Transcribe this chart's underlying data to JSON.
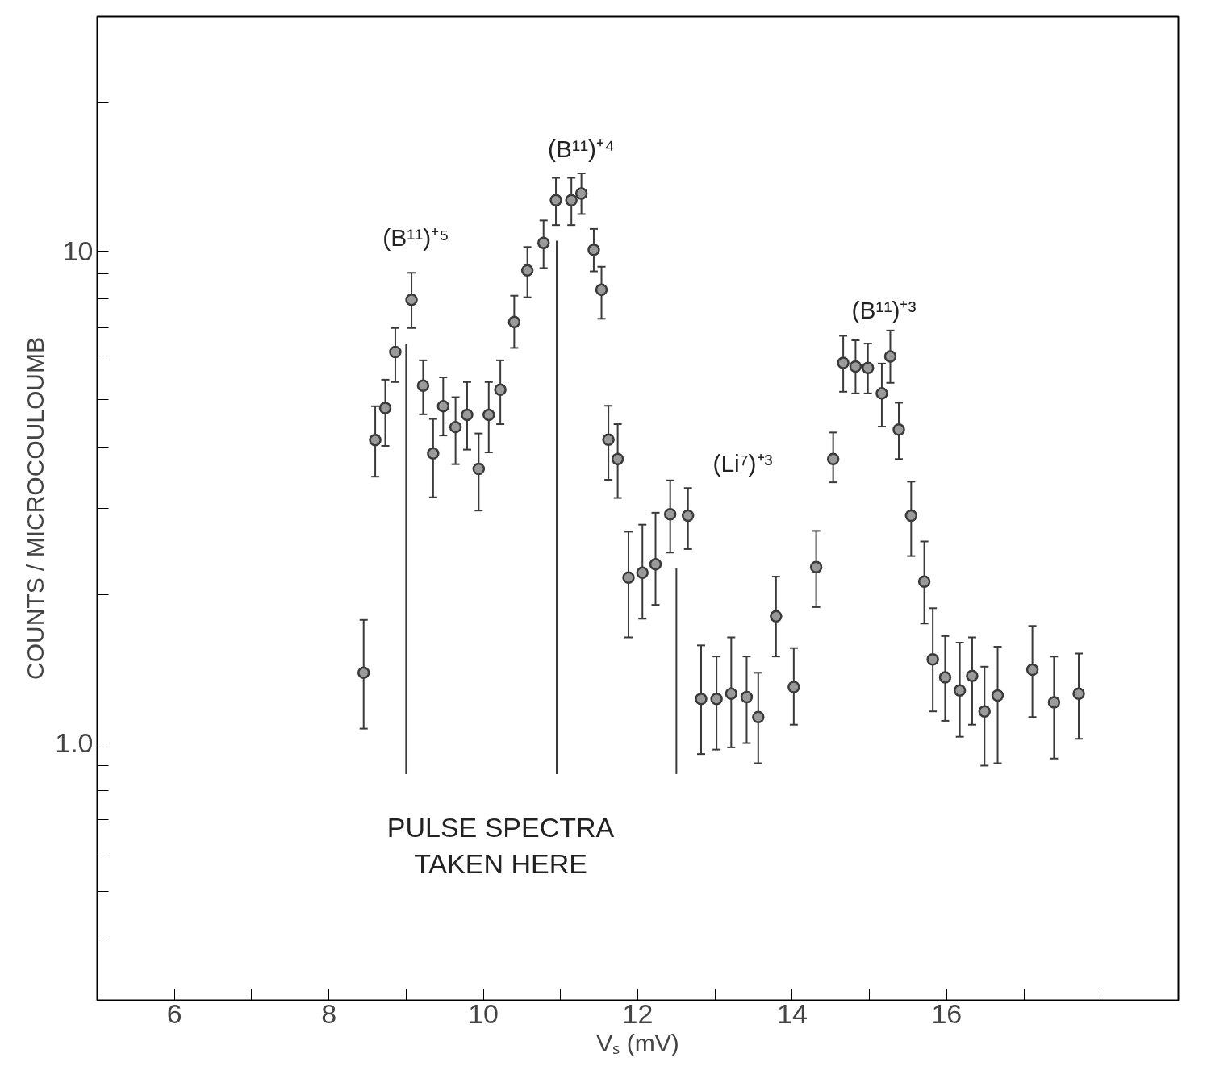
{
  "chart_data": {
    "type": "scatter",
    "xlabel": "Vₛ (mV)",
    "ylabel": "COUNTS / MICROCOULOUMB",
    "log": "y",
    "grid": false,
    "marker": "circle",
    "xlim": [
      5,
      19
    ],
    "ylim": [
      0.3,
      30
    ],
    "xticks": [
      6,
      {
        "value": 7,
        "label": null
      },
      8,
      {
        "value": 9,
        "label": null
      },
      10,
      {
        "value": 11,
        "label": null
      },
      12,
      {
        "value": 13,
        "label": null
      },
      14,
      {
        "value": 15,
        "label": null
      },
      16,
      {
        "value": 17,
        "label": null
      },
      {
        "value": 18,
        "label": null
      }
    ],
    "yticks": [
      {
        "value": 0.4,
        "label": null
      },
      {
        "value": 0.5,
        "label": null
      },
      {
        "value": 0.6,
        "label": null
      },
      {
        "value": 0.7,
        "label": null
      },
      {
        "value": 0.8,
        "label": null
      },
      {
        "value": 0.9,
        "label": null
      },
      {
        "value": 1,
        "label": "1.0"
      },
      {
        "value": 2,
        "label": null
      },
      {
        "value": 3,
        "label": null
      },
      {
        "value": 4,
        "label": null
      },
      {
        "value": 5,
        "label": null
      },
      {
        "value": 6,
        "label": null
      },
      {
        "value": 7,
        "label": null
      },
      {
        "value": 8,
        "label": null
      },
      {
        "value": 9,
        "label": null
      },
      {
        "value": 10,
        "label": "10"
      },
      {
        "value": 20,
        "label": null
      }
    ],
    "series": [
      {
        "color": "#3a3a3a",
        "x": [
          8.45,
          8.6,
          8.73,
          8.86,
          9.07,
          9.22,
          9.35,
          9.48,
          9.64,
          9.79,
          9.94,
          10.07,
          10.22,
          10.4,
          10.57,
          10.78,
          10.94,
          11.14,
          11.27,
          11.43,
          11.53,
          11.62,
          11.74,
          11.88,
          12.06,
          12.23,
          12.42,
          12.65,
          12.82,
          13.02,
          13.21,
          13.41,
          13.56,
          13.79,
          14.02,
          14.31,
          14.53,
          14.66,
          14.82,
          14.98,
          15.16,
          15.27,
          15.38,
          15.54,
          15.71,
          15.82,
          15.98,
          16.17,
          16.33,
          16.49,
          16.66,
          17.11,
          17.39,
          17.71
        ],
        "values": [
          1.39,
          4.13,
          4.8,
          6.24,
          7.97,
          5.33,
          3.88,
          4.84,
          4.39,
          4.65,
          3.61,
          4.65,
          5.23,
          7.18,
          9.14,
          10.4,
          12.7,
          12.7,
          13.1,
          10.07,
          8.35,
          4.14,
          3.78,
          2.17,
          2.22,
          2.31,
          2.92,
          2.9,
          1.23,
          1.23,
          1.26,
          1.24,
          1.13,
          1.81,
          1.3,
          2.28,
          3.78,
          5.93,
          5.83,
          5.79,
          5.14,
          6.11,
          4.34,
          2.9,
          2.13,
          1.48,
          1.36,
          1.28,
          1.37,
          1.16,
          1.25,
          1.41,
          1.21,
          1.26
        ],
        "errors": [
          [
            1.07,
            1.78
          ],
          [
            3.48,
            4.84
          ],
          [
            4.02,
            5.48
          ],
          [
            5.42,
            6.98
          ],
          [
            6.98,
            9.04
          ],
          [
            4.66,
            6.0
          ],
          [
            3.16,
            4.56
          ],
          [
            4.22,
            5.54
          ],
          [
            3.69,
            5.05
          ],
          [
            3.95,
            5.42
          ],
          [
            2.97,
            4.26
          ],
          [
            3.9,
            5.42
          ],
          [
            4.45,
            6.0
          ],
          [
            6.36,
            8.12
          ],
          [
            8.06,
            10.2
          ],
          [
            9.24,
            11.55
          ],
          [
            11.3,
            14.1
          ],
          [
            11.3,
            14.1
          ],
          [
            11.9,
            14.4
          ],
          [
            9.1,
            11.1
          ],
          [
            7.29,
            9.3
          ],
          [
            3.43,
            4.85
          ],
          [
            3.15,
            4.45
          ],
          [
            1.64,
            2.69
          ],
          [
            1.79,
            2.78
          ],
          [
            1.91,
            2.94
          ],
          [
            2.44,
            3.42
          ],
          [
            2.48,
            3.3
          ],
          [
            0.95,
            1.58
          ],
          [
            0.97,
            1.5
          ],
          [
            0.98,
            1.64
          ],
          [
            1.0,
            1.5
          ],
          [
            0.91,
            1.39
          ],
          [
            1.5,
            2.18
          ],
          [
            1.09,
            1.56
          ],
          [
            1.89,
            2.7
          ],
          [
            3.39,
            4.28
          ],
          [
            5.18,
            6.73
          ],
          [
            5.14,
            6.59
          ],
          [
            5.14,
            6.49
          ],
          [
            4.4,
            5.91
          ],
          [
            5.4,
            6.9
          ],
          [
            3.78,
            4.92
          ],
          [
            2.4,
            3.4
          ],
          [
            1.75,
            2.57
          ],
          [
            1.16,
            1.88
          ],
          [
            1.11,
            1.65
          ],
          [
            1.03,
            1.6
          ],
          [
            1.09,
            1.64
          ],
          [
            0.9,
            1.43
          ],
          [
            0.91,
            1.57
          ],
          [
            1.13,
            1.73
          ],
          [
            0.93,
            1.5
          ],
          [
            1.02,
            1.52
          ]
        ]
      }
    ],
    "ref_lines": [
      {
        "axis": "x",
        "value": 9.0,
        "color": "#3a3a3a"
      },
      {
        "axis": "x",
        "value": 10.95,
        "color": "#3a3a3a"
      },
      {
        "axis": "x",
        "value": 12.5,
        "color": "#3a3a3a"
      }
    ],
    "annotations": [
      "(B¹¹)⁺⁵",
      "(B¹¹)⁺⁴",
      "(Li⁷)⁺³",
      "(B¹¹)⁺³",
      "PULSE SPECTRA\nTAKEN HERE"
    ]
  }
}
